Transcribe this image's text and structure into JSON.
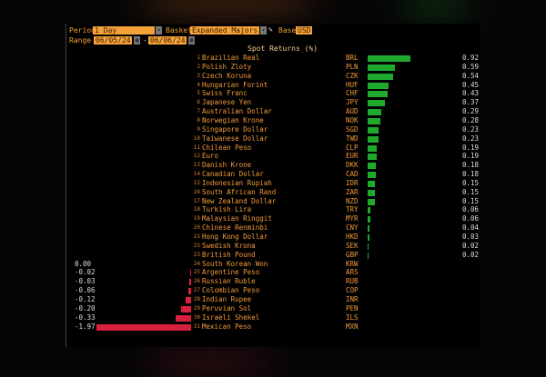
{
  "controls": {
    "period_label": "Period",
    "period_value": "1 Day",
    "basket_label": "Basket",
    "basket_value": "Expanded Majors",
    "base_label": "Base",
    "base_value": "USD",
    "range_label": "Range",
    "range_start": "06/05/24",
    "range_sep": "-",
    "range_end": "06/06/24"
  },
  "colors": {
    "positive": "#1faa2e",
    "negative": "#d8203c",
    "field": "#f5a23a",
    "text": "#f39a3a"
  },
  "chart_data": {
    "type": "bar",
    "title": "Spot Returns (%)",
    "orientation": "horizontal",
    "categories": [
      "Brazilian Real",
      "Polish Zloty",
      "Czech Koruna",
      "Hungarian Forint",
      "Swiss Franc",
      "Japanese Yen",
      "Australian Dollar",
      "Norwegian Krone",
      "Singapore Dollar",
      "Taiwanese Dollar",
      "Chilean Peso",
      "Euro",
      "Danish Krone",
      "Canadian Dollar",
      "Indonesian Rupiah",
      "South African Rand",
      "New Zealand Dollar",
      "Turkish Lira",
      "Malaysian Ringgit",
      "Chinese Renminbi",
      "Hong Kong Dollar",
      "Swedish Krona",
      "British Pound",
      "South Korean Won",
      "Argentine Peso",
      "Russian Ruble",
      "Colombian Peso",
      "Indian Rupee",
      "Peruvian Sol",
      "Israeli Shekel",
      "Mexican Peso"
    ],
    "codes": [
      "BRL",
      "PLN",
      "CZK",
      "HUF",
      "CHF",
      "JPY",
      "AUD",
      "NOK",
      "SGD",
      "TWD",
      "CLP",
      "EUR",
      "DKK",
      "CAD",
      "IDR",
      "ZAR",
      "NZD",
      "TRY",
      "MYR",
      "CNY",
      "HKD",
      "SEK",
      "GBP",
      "KRW",
      "ARS",
      "RUB",
      "COP",
      "INR",
      "PEN",
      "ILS",
      "MXN"
    ],
    "values": [
      0.92,
      0.59,
      0.54,
      0.45,
      0.43,
      0.37,
      0.29,
      0.28,
      0.23,
      0.23,
      0.19,
      0.19,
      0.18,
      0.18,
      0.15,
      0.15,
      0.15,
      0.06,
      0.06,
      0.04,
      0.03,
      0.02,
      0.02,
      0.0,
      -0.02,
      -0.03,
      -0.06,
      -0.12,
      -0.2,
      -0.33,
      -1.97
    ],
    "value_labels": [
      "0.92",
      "0.59",
      "0.54",
      "0.45",
      "0.43",
      "0.37",
      "0.29",
      "0.28",
      "0.23",
      "0.23",
      "0.19",
      "0.19",
      "0.18",
      "0.18",
      "0.15",
      "0.15",
      "0.15",
      "0.06",
      "0.06",
      "0.04",
      "0.03",
      "0.02",
      "0.02",
      "0.00",
      "-0.02",
      "-0.03",
      "-0.06",
      "-0.12",
      "-0.20",
      "-0.33",
      "-1.97"
    ]
  }
}
